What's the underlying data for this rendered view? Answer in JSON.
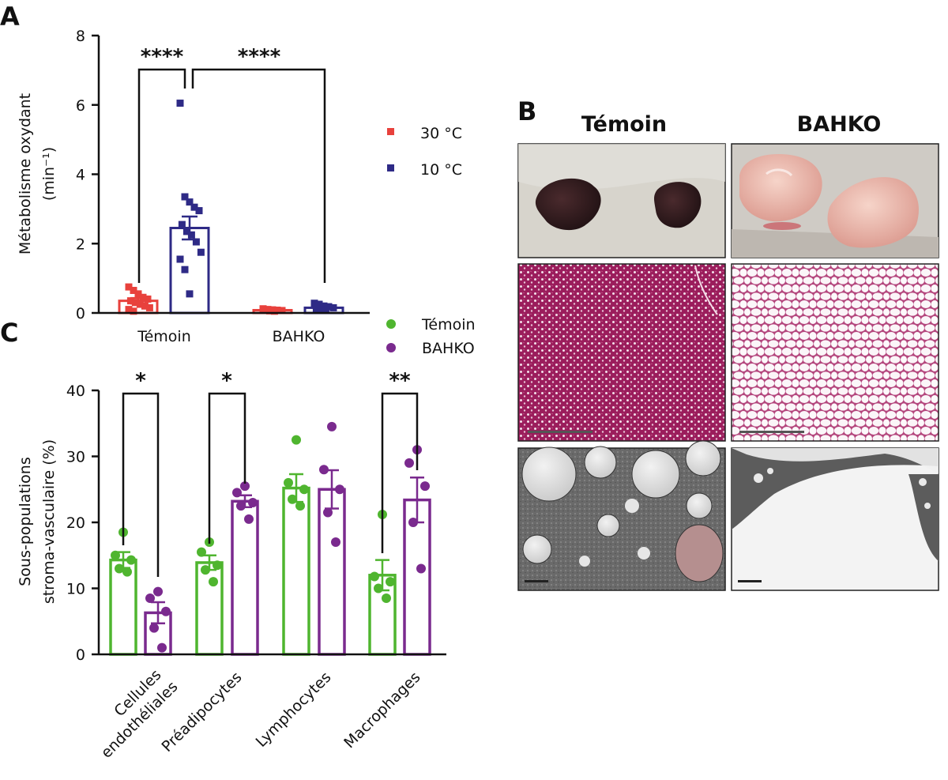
{
  "figure": {
    "panel_labels": [
      "A",
      "B",
      "C"
    ],
    "panel_b": {
      "columns": [
        "Témoin",
        "BAHKO"
      ],
      "rows": [
        "photo",
        "histologie",
        "microscopie électronique"
      ]
    }
  },
  "colors": {
    "c30": "#e8413c",
    "c10": "#2e2a86",
    "temoin": "#4fb52f",
    "bahko": "#7a2a8e"
  },
  "chart_data": [
    {
      "id": "A",
      "type": "bar",
      "ylabel_line1": "Métabolisme oxydant",
      "ylabel_line2": "(min⁻¹)",
      "ylim": [
        0,
        8
      ],
      "yticks": [
        0,
        2,
        4,
        6,
        8
      ],
      "categories": [
        "Témoin",
        "BAHKO"
      ],
      "series": [
        {
          "name": "30 °C",
          "color": "#e8413c",
          "values": [
            0.35,
            0.08
          ],
          "sem": [
            0.08,
            0.02
          ],
          "points": [
            [
              0.75,
              0.65,
              0.55,
              0.45,
              0.4,
              0.35,
              0.3,
              0.25,
              0.2,
              0.15,
              0.1,
              0.05
            ],
            [
              0.12,
              0.1,
              0.09,
              0.08,
              0.07,
              0.07,
              0.06,
              0.05
            ]
          ]
        },
        {
          "name": "10 °C",
          "color": "#2e2a86",
          "values": [
            2.45,
            0.15
          ],
          "sem": [
            0.33,
            0.03
          ],
          "points": [
            [
              6.05,
              3.35,
              3.2,
              3.05,
              2.95,
              2.55,
              2.35,
              2.25,
              2.05,
              1.75,
              1.55,
              1.25,
              0.55
            ],
            [
              0.28,
              0.25,
              0.2,
              0.18,
              0.15,
              0.12,
              0.1,
              0.08
            ]
          ]
        }
      ],
      "significance": [
        {
          "label": "****",
          "between": "Témoin 30 °C vs Témoin 10 °C"
        },
        {
          "label": "****",
          "between": "Témoin 10 °C vs BAHKO 10 °C"
        }
      ]
    },
    {
      "id": "C",
      "type": "bar",
      "ylabel_line1": "Sous-populations",
      "ylabel_line2": "stroma-vasculaire (%)",
      "ylim": [
        0,
        40
      ],
      "yticks": [
        0,
        10,
        20,
        30,
        40
      ],
      "categories": [
        "Cellules endothéliales",
        "Préadipocytes",
        "Lymphocytes",
        "Macrophages"
      ],
      "category_lines": [
        [
          "Cellules",
          "endothéliales"
        ],
        [
          "Préadipocytes"
        ],
        [
          "Lymphocytes"
        ],
        [
          "Macrophages"
        ]
      ],
      "series": [
        {
          "name": "Témoin",
          "color": "#4fb52f",
          "values": [
            14.3,
            13.9,
            25.2,
            12.0
          ],
          "sem": [
            1.2,
            1.1,
            2.1,
            2.3
          ],
          "points": [
            [
              18.5,
              15.0,
              14.3,
              13.0,
              12.5
            ],
            [
              17.0,
              15.5,
              13.5,
              12.8,
              11.0
            ],
            [
              32.5,
              26.0,
              25.0,
              23.5,
              22.5
            ],
            [
              21.2,
              11.8,
              11.0,
              10.0,
              8.5
            ]
          ]
        },
        {
          "name": "BAHKO",
          "color": "#7a2a8e",
          "values": [
            6.3,
            23.2,
            25.0,
            23.4
          ],
          "sem": [
            1.6,
            0.9,
            2.9,
            3.4
          ],
          "points": [
            [
              9.5,
              8.5,
              6.5,
              4.0,
              1.0
            ],
            [
              25.5,
              24.5,
              23.0,
              22.5,
              20.5
            ],
            [
              34.5,
              28.0,
              25.0,
              21.5,
              17.0
            ],
            [
              31.0,
              29.0,
              25.5,
              20.0,
              13.0
            ]
          ]
        }
      ],
      "significance": [
        {
          "label": "*",
          "category": "Cellules endothéliales"
        },
        {
          "label": "*",
          "category": "Préadipocytes"
        },
        {
          "label": "**",
          "category": "Macrophages"
        }
      ]
    }
  ]
}
